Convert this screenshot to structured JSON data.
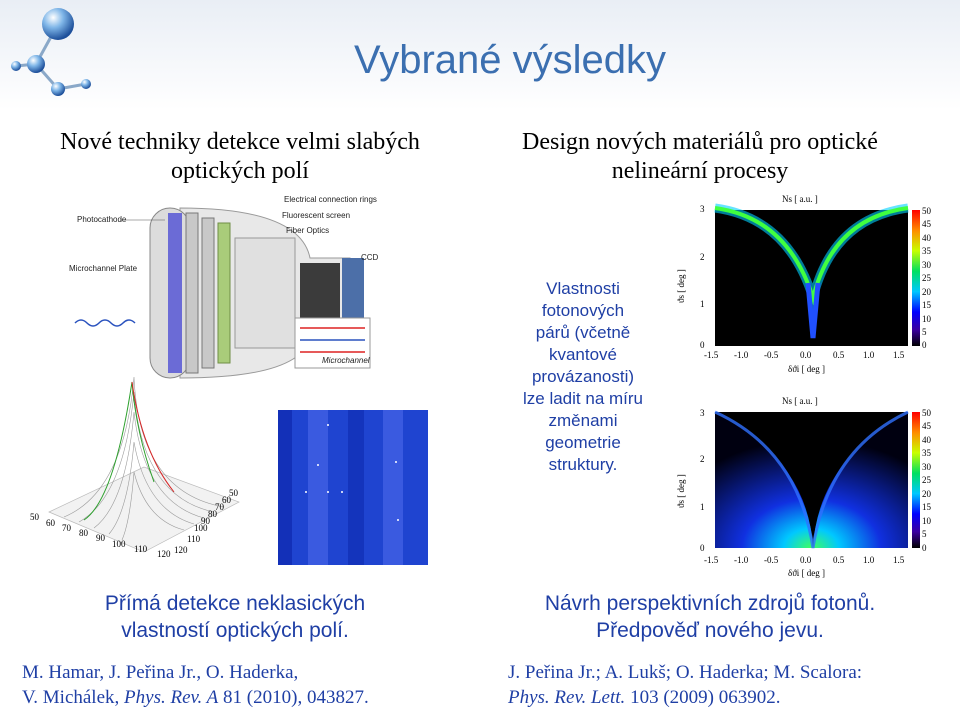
{
  "header": {
    "title": "Vybrané výsledky"
  },
  "left": {
    "heading": [
      "Nové techniky detekce velmi slabých",
      "optických polí"
    ],
    "diagram_labels": {
      "photocathode": "Photocathode",
      "microchannel_plate": "Microchannel Plate",
      "electrical_rings": "Electrical connection rings",
      "fluorescent_screen": "Fluorescent screen",
      "fiber_optics": "Fiber Optics",
      "ccd": "CCD",
      "microchannel": "Microchannel"
    },
    "surface_axis_ticks": {
      "left_axis": [
        "50",
        "60",
        "70",
        "80",
        "90",
        "100",
        "110",
        "120"
      ],
      "right_axis": [
        "50",
        "60",
        "70",
        "80",
        "90",
        "100",
        "110",
        "120"
      ]
    },
    "caption": [
      "Přímá detekce neklasických",
      "vlastností optických polí."
    ],
    "reference": {
      "line1": "M. Hamar, J. Peřina Jr., O. Haderka,",
      "line2_authors": "V. Michálek, ",
      "line2_journal": "Phys. Rev. A",
      "line2_rest": " 81 (2010), 043827."
    }
  },
  "right": {
    "heading": [
      "Design nových materiálů pro optické",
      "nelineární procesy"
    ],
    "description": [
      "Vlastnosti",
      "fotonových",
      "párů (včetně",
      "kvantové",
      "provázanosti)",
      "lze ladit na míru",
      "změnami",
      "geometrie",
      "struktury."
    ],
    "plots": [
      {
        "title": "Ns [ a.u. ]",
        "ylabel": "ϑs [ deg ]",
        "xlabel": "δϑi [ deg ]",
        "yticks": [
          "3",
          "2",
          "1",
          "0"
        ],
        "xticks": [
          "-1.5",
          "-1.0",
          "-0.5",
          "0.0",
          "0.5",
          "1.0",
          "1.5"
        ],
        "colorbar_ticks": [
          "50",
          "45",
          "40",
          "35",
          "30",
          "25",
          "20",
          "15",
          "10",
          "5",
          "0"
        ]
      },
      {
        "title": "Ns [ a.u. ]",
        "ylabel": "ϑs [ deg ]",
        "xlabel": "δϑi [ deg ]",
        "yticks": [
          "3",
          "2",
          "1",
          "0"
        ],
        "xticks": [
          "-1.5",
          "-1.0",
          "-0.5",
          "0.0",
          "0.5",
          "1.0",
          "1.5"
        ],
        "colorbar_ticks": [
          "50",
          "45",
          "40",
          "35",
          "30",
          "25",
          "20",
          "15",
          "10",
          "5",
          "0"
        ]
      }
    ],
    "caption": [
      "Návrh perspektivních zdrojů fotonů.",
      "Předpověď nového jevu."
    ],
    "reference": {
      "line1": "J. Peřina Jr.; A. Lukš; O. Haderka; M. Scalora:",
      "line2_journal": "Phys. Rev. Lett.",
      "line2_rest": " 103 (2009) 063902."
    }
  }
}
